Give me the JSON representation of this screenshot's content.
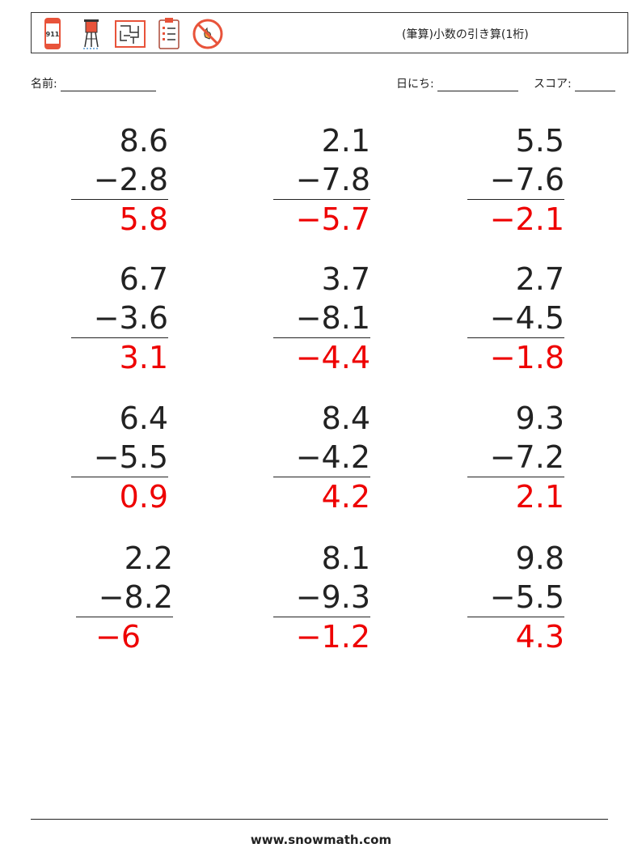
{
  "header": {
    "title": "(筆算)小数の引き算(1桁)",
    "icons": [
      "phone-911-icon",
      "water-tower-icon",
      "maze-icon",
      "clipboard-checklist-icon",
      "no-fire-icon"
    ]
  },
  "fields": {
    "name_label": "名前:",
    "date_label": "日にち:",
    "score_label": "スコア:"
  },
  "problems": [
    {
      "top": "8.6",
      "bottom": "−2.8",
      "answer": "5.8"
    },
    {
      "top": "2.1",
      "bottom": "−7.8",
      "answer": "−5.7"
    },
    {
      "top": "5.5",
      "bottom": "−7.6",
      "answer": "−2.1"
    },
    {
      "top": "6.7",
      "bottom": "−3.6",
      "answer": "3.1"
    },
    {
      "top": "3.7",
      "bottom": "−8.1",
      "answer": "−4.4"
    },
    {
      "top": "2.7",
      "bottom": "−4.5",
      "answer": "−1.8"
    },
    {
      "top": "6.4",
      "bottom": "−5.5",
      "answer": "0.9"
    },
    {
      "top": "8.4",
      "bottom": "−4.2",
      "answer": "4.2"
    },
    {
      "top": "9.3",
      "bottom": "−7.2",
      "answer": "2.1"
    },
    {
      "top": "2.2",
      "bottom": "−8.2",
      "answer": "−6"
    },
    {
      "top": "8.1",
      "bottom": "−9.3",
      "answer": "−1.2"
    },
    {
      "top": "9.8",
      "bottom": "−5.5",
      "answer": "4.3"
    }
  ],
  "colors": {
    "answer": "#ee0000",
    "icon_accent": "#e8533a"
  },
  "footer": {
    "site": "www.snowmath.com"
  }
}
